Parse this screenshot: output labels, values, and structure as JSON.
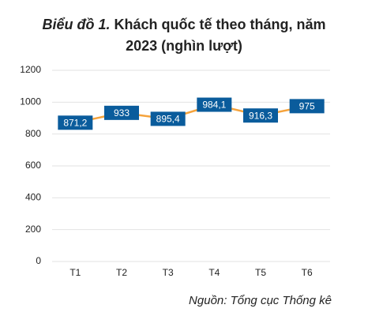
{
  "chart_data": {
    "type": "line",
    "title_label": "Biểu đồ 1.",
    "title": "Khách quốc tế theo tháng, năm 2023 (nghìn lượt)",
    "source": "Nguồn: Tổng cục Thống kê",
    "categories": [
      "T1",
      "T2",
      "T3",
      "T4",
      "T5",
      "T6"
    ],
    "values": [
      871.2,
      933,
      895.4,
      984.1,
      916.3,
      975
    ],
    "value_labels": [
      "871,2",
      "933",
      "895,4",
      "984,1",
      "916,3",
      "975"
    ],
    "color": "#f5a33c",
    "label_color": "#0a5c9c",
    "ylim": [
      0,
      1200
    ],
    "yticks": [
      0,
      200,
      400,
      600,
      800,
      1000,
      1200
    ],
    "grid": true
  }
}
